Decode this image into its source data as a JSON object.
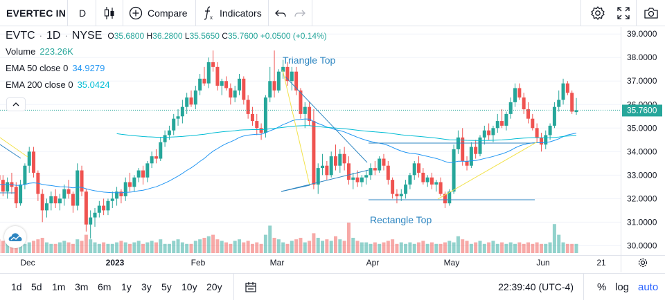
{
  "toolbar": {
    "symbol": "EVERTEC IN",
    "interval": "D",
    "compare_label": "Compare",
    "indicators_label": "Indicators"
  },
  "legend": {
    "ticker": "EVTC",
    "interval": "1D",
    "exchange": "NYSE",
    "o_label": "O",
    "o_value": "35.6800",
    "h_label": "H",
    "h_value": "36.2800",
    "l_label": "L",
    "l_value": "35.5650",
    "c_label": "C",
    "c_value": "35.7600",
    "change": "+0.0500 (+0.14%)",
    "volume_label": "Volume",
    "volume_value": "223.26K",
    "ema50_label": "EMA 50 close 0",
    "ema50_value": "34.9279",
    "ema200_label": "EMA 200 close 0",
    "ema200_value": "35.0424"
  },
  "bottom": {
    "ranges": [
      "1d",
      "5d",
      "1m",
      "3m",
      "6m",
      "1y",
      "3y",
      "5y",
      "10y",
      "20y"
    ],
    "time": "22:39:40 (UTC-4)",
    "percent": "%",
    "log": "log",
    "auto": "auto"
  },
  "colors": {
    "up": "#26a69a",
    "down": "#ef5350",
    "ema50": "#2196f3",
    "ema200": "#00bcd4",
    "annot": "#2e86c1",
    "yellow": "#f2e24b"
  },
  "chart_data": {
    "type": "candlestick",
    "ylim": [
      29.6,
      39.3
    ],
    "yticks": [
      "39.0000",
      "38.0000",
      "37.0000",
      "36.0000",
      "35.0000",
      "34.0000",
      "33.0000",
      "32.0000",
      "31.0000",
      "30.0000"
    ],
    "last_price_label": "35.7600",
    "xticks": [
      "Dec",
      "2023",
      "Feb",
      "Mar",
      "Apr",
      "May",
      "Jun",
      "21"
    ],
    "annotations": [
      "Triangle Top",
      "Rectangle Top"
    ],
    "candles": [
      [
        33.0,
        33.4,
        32.6,
        32.8
      ],
      [
        32.8,
        33.0,
        32.1,
        32.3
      ],
      [
        32.3,
        32.9,
        32.0,
        32.7
      ],
      [
        32.7,
        33.1,
        32.2,
        32.5
      ],
      [
        32.5,
        32.7,
        31.6,
        31.8
      ],
      [
        31.8,
        32.8,
        31.7,
        32.6
      ],
      [
        32.6,
        33.5,
        32.4,
        33.4
      ],
      [
        33.4,
        34.2,
        33.1,
        34.0
      ],
      [
        34.0,
        34.2,
        32.9,
        33.1
      ],
      [
        33.1,
        33.2,
        31.9,
        32.2
      ],
      [
        32.2,
        32.4,
        31.0,
        31.5
      ],
      [
        31.5,
        32.0,
        31.2,
        31.8
      ],
      [
        31.8,
        32.3,
        31.5,
        32.1
      ],
      [
        32.1,
        32.4,
        31.6,
        31.8
      ],
      [
        31.8,
        32.2,
        31.5,
        32.0
      ],
      [
        32.0,
        32.6,
        31.7,
        32.4
      ],
      [
        32.4,
        32.8,
        32.0,
        32.2
      ],
      [
        32.2,
        32.3,
        31.4,
        31.7
      ],
      [
        31.7,
        33.5,
        31.5,
        33.2
      ],
      [
        33.2,
        33.4,
        32.1,
        32.3
      ],
      [
        32.3,
        32.4,
        30.6,
        30.9
      ],
      [
        30.9,
        31.5,
        30.3,
        31.2
      ],
      [
        31.2,
        31.6,
        30.8,
        31.4
      ],
      [
        31.4,
        31.9,
        31.2,
        31.7
      ],
      [
        31.7,
        32.0,
        31.3,
        31.5
      ],
      [
        31.5,
        32.0,
        31.3,
        31.9
      ],
      [
        31.9,
        32.3,
        31.6,
        32.0
      ],
      [
        32.0,
        32.5,
        31.7,
        32.3
      ],
      [
        32.3,
        32.4,
        31.8,
        32.1
      ],
      [
        32.1,
        32.9,
        31.9,
        32.7
      ],
      [
        32.7,
        33.1,
        32.3,
        32.5
      ],
      [
        32.5,
        33.0,
        32.3,
        32.9
      ],
      [
        32.9,
        33.3,
        32.7,
        33.2
      ],
      [
        33.2,
        33.4,
        32.6,
        32.9
      ],
      [
        32.9,
        33.6,
        32.7,
        33.5
      ],
      [
        33.5,
        34.0,
        33.3,
        33.8
      ],
      [
        33.8,
        34.1,
        33.5,
        33.7
      ],
      [
        33.7,
        34.6,
        33.6,
        34.4
      ],
      [
        34.4,
        34.9,
        34.2,
        34.7
      ],
      [
        34.7,
        35.1,
        34.5,
        34.9
      ],
      [
        34.9,
        35.6,
        34.7,
        35.4
      ],
      [
        35.4,
        35.8,
        35.1,
        35.5
      ],
      [
        35.5,
        36.2,
        35.2,
        35.9
      ],
      [
        35.9,
        36.5,
        35.6,
        36.3
      ],
      [
        36.3,
        36.6,
        35.9,
        36.0
      ],
      [
        36.0,
        36.8,
        35.8,
        36.6
      ],
      [
        36.6,
        37.3,
        36.4,
        37.1
      ],
      [
        37.1,
        37.6,
        36.8,
        36.9
      ],
      [
        36.9,
        38.0,
        36.7,
        37.8
      ],
      [
        37.8,
        38.3,
        37.4,
        37.6
      ],
      [
        37.6,
        37.8,
        36.6,
        36.8
      ],
      [
        36.8,
        37.1,
        36.4,
        37.0
      ],
      [
        37.0,
        37.2,
        36.6,
        36.7
      ],
      [
        36.7,
        36.9,
        36.0,
        36.3
      ],
      [
        36.3,
        36.8,
        36.1,
        36.6
      ],
      [
        36.6,
        37.3,
        36.4,
        37.1
      ],
      [
        37.1,
        37.2,
        36.0,
        36.2
      ],
      [
        36.2,
        36.4,
        35.4,
        35.6
      ],
      [
        35.6,
        35.9,
        35.1,
        35.3
      ],
      [
        35.3,
        35.6,
        34.7,
        35.0
      ],
      [
        35.0,
        35.2,
        34.5,
        34.8
      ],
      [
        34.8,
        36.4,
        34.6,
        36.3
      ],
      [
        36.3,
        37.6,
        36.1,
        37.0
      ],
      [
        37.0,
        38.3,
        36.3,
        36.6
      ],
      [
        36.6,
        37.5,
        36.5,
        37.4
      ],
      [
        37.4,
        37.9,
        37.1,
        37.6
      ],
      [
        37.6,
        37.8,
        36.8,
        37.0
      ],
      [
        37.0,
        37.6,
        36.6,
        37.4
      ],
      [
        37.4,
        37.6,
        36.4,
        36.6
      ],
      [
        36.6,
        36.7,
        35.4,
        35.6
      ],
      [
        35.6,
        36.1,
        35.0,
        35.9
      ],
      [
        35.9,
        36.1,
        35.1,
        35.3
      ],
      [
        35.3,
        35.8,
        32.4,
        32.6
      ],
      [
        32.6,
        33.5,
        32.2,
        33.3
      ],
      [
        33.3,
        33.9,
        33.0,
        33.4
      ],
      [
        33.4,
        33.6,
        32.8,
        33.0
      ],
      [
        33.0,
        34.0,
        32.9,
        33.8
      ],
      [
        33.8,
        34.3,
        33.2,
        33.4
      ],
      [
        33.4,
        34.1,
        33.1,
        33.9
      ],
      [
        33.9,
        34.2,
        33.2,
        33.5
      ],
      [
        33.5,
        33.8,
        32.6,
        32.8
      ],
      [
        32.8,
        33.1,
        32.4,
        32.9
      ],
      [
        32.9,
        33.2,
        32.5,
        32.7
      ],
      [
        32.7,
        33.0,
        32.5,
        32.9
      ],
      [
        32.9,
        33.2,
        32.6,
        33.0
      ],
      [
        33.0,
        33.5,
        32.8,
        33.3
      ],
      [
        33.3,
        33.6,
        33.0,
        33.2
      ],
      [
        33.2,
        33.8,
        33.1,
        33.7
      ],
      [
        33.7,
        33.9,
        33.2,
        33.4
      ],
      [
        33.4,
        33.6,
        32.6,
        32.8
      ],
      [
        32.8,
        32.9,
        32.0,
        32.2
      ],
      [
        32.2,
        32.4,
        31.8,
        32.1
      ],
      [
        32.1,
        32.4,
        31.9,
        32.2
      ],
      [
        32.2,
        32.8,
        32.0,
        32.6
      ],
      [
        32.6,
        33.1,
        32.4,
        33.0
      ],
      [
        33.0,
        33.6,
        32.8,
        33.5
      ],
      [
        33.5,
        33.8,
        32.9,
        33.1
      ],
      [
        33.1,
        33.3,
        32.6,
        32.7
      ],
      [
        32.7,
        33.0,
        32.5,
        32.9
      ],
      [
        32.9,
        33.1,
        32.4,
        32.6
      ],
      [
        32.6,
        32.8,
        32.3,
        32.7
      ],
      [
        32.7,
        32.9,
        32.1,
        32.2
      ],
      [
        32.2,
        32.3,
        31.6,
        31.8
      ],
      [
        31.8,
        32.4,
        31.7,
        32.3
      ],
      [
        32.3,
        34.3,
        32.2,
        34.1
      ],
      [
        34.1,
        34.9,
        33.9,
        34.6
      ],
      [
        34.6,
        35.0,
        33.4,
        33.6
      ],
      [
        33.6,
        33.8,
        33.2,
        33.4
      ],
      [
        33.4,
        34.4,
        33.3,
        34.2
      ],
      [
        34.2,
        34.5,
        33.7,
        33.9
      ],
      [
        33.9,
        34.7,
        33.8,
        34.6
      ],
      [
        34.6,
        35.1,
        34.3,
        34.9
      ],
      [
        34.9,
        35.2,
        34.5,
        34.7
      ],
      [
        34.7,
        35.1,
        34.4,
        35.0
      ],
      [
        35.0,
        35.6,
        34.8,
        35.3
      ],
      [
        35.3,
        35.8,
        35.0,
        35.1
      ],
      [
        35.1,
        35.7,
        34.9,
        35.6
      ],
      [
        35.6,
        36.3,
        35.4,
        36.1
      ],
      [
        36.1,
        36.9,
        35.9,
        36.7
      ],
      [
        36.7,
        36.9,
        36.2,
        36.3
      ],
      [
        36.3,
        36.5,
        35.6,
        35.8
      ],
      [
        35.8,
        36.1,
        35.2,
        35.4
      ],
      [
        35.4,
        35.6,
        34.9,
        35.0
      ],
      [
        35.0,
        35.2,
        34.4,
        34.6
      ],
      [
        34.6,
        34.8,
        34.0,
        34.3
      ],
      [
        34.3,
        34.9,
        34.1,
        34.7
      ],
      [
        34.7,
        35.2,
        34.5,
        35.1
      ],
      [
        35.1,
        36.1,
        35.0,
        35.9
      ],
      [
        35.9,
        36.6,
        35.7,
        36.2
      ],
      [
        36.2,
        37.1,
        36.0,
        36.9
      ],
      [
        36.9,
        37.0,
        36.4,
        36.5
      ],
      [
        36.5,
        36.6,
        35.6,
        35.7
      ],
      [
        35.68,
        36.28,
        35.565,
        35.76
      ]
    ],
    "volumes": [
      0.9,
      0.8,
      0.7,
      0.6,
      0.9,
      0.8,
      0.6,
      0.7,
      0.8,
      0.9,
      1.0,
      0.7,
      0.6,
      0.6,
      0.7,
      0.8,
      0.7,
      0.6,
      0.9,
      0.8,
      1.2,
      0.9,
      0.7,
      0.6,
      0.7,
      0.6,
      0.6,
      0.7,
      0.8,
      0.7,
      0.6,
      0.7,
      0.8,
      0.6,
      0.7,
      0.8,
      0.7,
      0.9,
      0.6,
      0.6,
      0.8,
      0.9,
      0.7,
      0.6,
      0.6,
      0.8,
      0.9,
      1.0,
      1.1,
      1.2,
      0.9,
      0.8,
      0.7,
      0.6,
      0.8,
      0.9,
      0.7,
      0.8,
      0.6,
      0.7,
      0.6,
      1.2,
      1.8,
      1.0,
      0.9,
      0.7,
      0.6,
      0.8,
      0.9,
      1.0,
      0.7,
      0.8,
      1.3,
      1.0,
      0.8,
      0.9,
      0.8,
      1.1,
      0.9,
      0.8,
      2.0,
      1.0,
      0.8,
      0.7,
      0.7,
      0.6,
      0.7,
      0.6,
      0.7,
      0.8,
      0.9,
      0.6,
      0.7,
      0.6,
      0.7,
      0.6,
      0.7,
      0.8,
      0.6,
      0.7,
      0.6,
      0.6,
      0.7,
      0.8,
      0.7,
      1.1,
      0.9,
      0.8,
      0.6,
      0.7,
      0.8,
      0.6,
      0.7,
      0.8,
      0.6,
      0.7,
      0.6,
      0.7,
      0.6,
      0.7,
      0.6,
      0.7,
      0.6,
      0.7,
      0.6,
      0.6,
      0.7,
      1.9,
      1.2,
      0.7,
      0.6,
      0.6,
      0.6
    ]
  }
}
